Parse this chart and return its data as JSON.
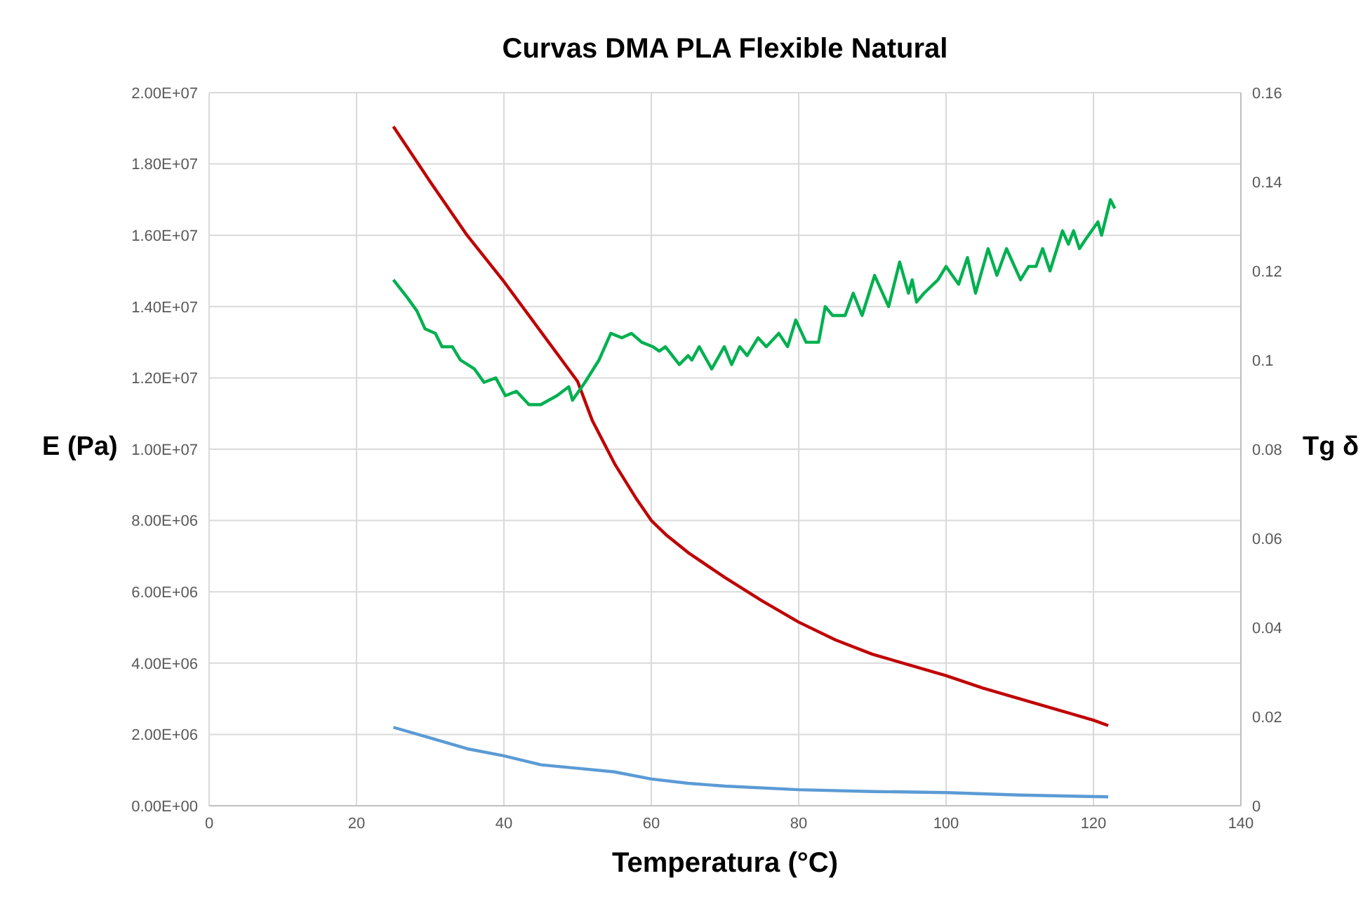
{
  "chart_data": {
    "type": "line",
    "title": "Curvas DMA PLA Flexible Natural",
    "xlabel": "Temperatura (°C)",
    "ylabel": "E (Pa)",
    "y2label": "Tg δ",
    "grid": true,
    "xlim": [
      0,
      140
    ],
    "xticks": [
      0,
      20,
      40,
      60,
      80,
      100,
      120,
      140
    ],
    "ylim": [
      0,
      20000000
    ],
    "yticks": [
      {
        "value": 0,
        "label": "0.00E+00"
      },
      {
        "value": 2000000,
        "label": "2.00E+06"
      },
      {
        "value": 4000000,
        "label": "4.00E+06"
      },
      {
        "value": 6000000,
        "label": "6.00E+06"
      },
      {
        "value": 8000000,
        "label": "8.00E+06"
      },
      {
        "value": 10000000,
        "label": "1.00E+07"
      },
      {
        "value": 12000000,
        "label": "1.20E+07"
      },
      {
        "value": 14000000,
        "label": "1.40E+07"
      },
      {
        "value": 16000000,
        "label": "1.60E+07"
      },
      {
        "value": 18000000,
        "label": "1.80E+07"
      },
      {
        "value": 20000000,
        "label": "2.00E+07"
      }
    ],
    "y2lim": [
      0,
      0.16
    ],
    "y2ticks": [
      0,
      0.02,
      0.04,
      0.06,
      0.08,
      0.1,
      0.12,
      0.14,
      0.16
    ],
    "series": [
      {
        "color": "#c00000",
        "x": [
          25,
          30,
          35,
          40,
          45,
          50,
          52,
          55,
          58,
          60,
          62,
          65,
          70,
          75,
          80,
          85,
          90,
          95,
          100,
          105,
          110,
          115,
          120,
          122
        ],
        "values": [
          19050000,
          17500000,
          16000000,
          14700000,
          13300000,
          11900000,
          10800000,
          9600000,
          8600000,
          8000000,
          7600000,
          7100000,
          6400000,
          5750000,
          5150000,
          4650000,
          4250000,
          3950000,
          3650000,
          3300000,
          3000000,
          2700000,
          2400000,
          2250000
        ]
      },
      {
        "color": "#5b9bd5",
        "x": [
          25,
          30,
          35,
          40,
          45,
          50,
          55,
          60,
          65,
          70,
          80,
          90,
          100,
          110,
          122
        ],
        "values": [
          2200000,
          1900000,
          1600000,
          1400000,
          1150000,
          1050000,
          950000,
          750000,
          630000,
          550000,
          450000,
          400000,
          370000,
          300000,
          250000
        ]
      },
      {
        "color": "#00b050",
        "axis": "y2",
        "x": [
          25,
          26.9,
          28.2,
          29.3,
          30.7,
          31.6,
          33,
          34.1,
          36,
          37.3,
          38.9,
          40.2,
          41.7,
          43.4,
          44,
          45,
          47.2,
          48.8,
          49.3,
          51,
          52.9,
          54.5,
          56,
          57.3,
          58.7,
          60.2,
          61.1,
          61.9,
          63.8,
          65,
          65.5,
          66.5,
          68.2,
          69.9,
          70.9,
          72,
          73,
          74.5,
          75.6,
          77.3,
          78.5,
          79.6,
          81,
          81.9,
          82.7,
          83.6,
          84.6,
          86.3,
          87.4,
          88.6,
          90.3,
          92.2,
          93.7,
          94.9,
          95.4,
          96,
          97,
          98.9,
          100,
          101.7,
          102.9,
          104,
          105.7,
          106.9,
          108.2,
          110.1,
          111.2,
          112.2,
          113.1,
          114.1,
          115.8,
          116.6,
          117.3,
          118.1,
          118.9,
          120.6,
          121.1,
          122.3,
          122.9
        ],
        "values": [
          0.118,
          0.114,
          0.111,
          0.107,
          0.106,
          0.103,
          0.103,
          0.1,
          0.098,
          0.095,
          0.096,
          0.092,
          0.093,
          0.09,
          0.09,
          0.09,
          0.092,
          0.094,
          0.091,
          0.095,
          0.1,
          0.106,
          0.105,
          0.106,
          0.104,
          0.103,
          0.102,
          0.103,
          0.099,
          0.101,
          0.1,
          0.103,
          0.098,
          0.103,
          0.099,
          0.103,
          0.101,
          0.105,
          0.103,
          0.106,
          0.103,
          0.109,
          0.104,
          0.104,
          0.104,
          0.112,
          0.11,
          0.11,
          0.115,
          0.11,
          0.119,
          0.112,
          0.122,
          0.115,
          0.118,
          0.113,
          0.115,
          0.118,
          0.121,
          0.117,
          0.123,
          0.115,
          0.125,
          0.119,
          0.125,
          0.118,
          0.121,
          0.121,
          0.125,
          0.12,
          0.129,
          0.126,
          0.129,
          0.125,
          0.127,
          0.131,
          0.128,
          0.136,
          0.134
        ]
      }
    ]
  }
}
